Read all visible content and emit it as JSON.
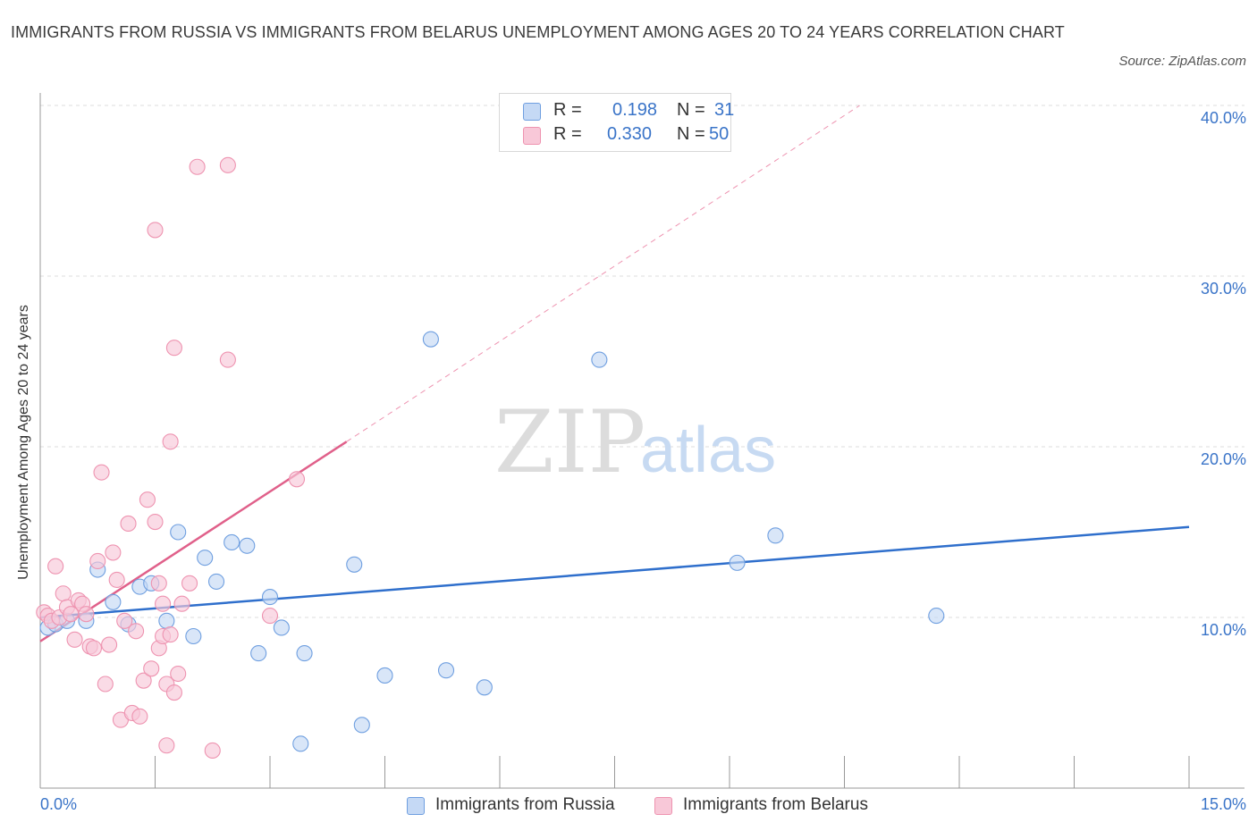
{
  "chart_data": {
    "type": "scatter",
    "title": "IMMIGRANTS FROM RUSSIA VS IMMIGRANTS FROM BELARUS UNEMPLOYMENT AMONG AGES 20 TO 24 YEARS CORRELATION CHART",
    "source": "Source: ZipAtlas.com",
    "ylabel": "Unemployment Among Ages 20 to 24 years",
    "xlabel": "",
    "xlim": [
      0,
      15
    ],
    "ylim": [
      0,
      40
    ],
    "x_tick_labels": [
      "0.0%",
      "15.0%"
    ],
    "y_ticks": [
      10,
      20,
      30,
      40
    ],
    "y_tick_labels": [
      "10.0%",
      "20.0%",
      "30.0%",
      "40.0%"
    ],
    "grid": true,
    "watermark": "ZIPatlas",
    "legend_stats": {
      "r_label": "R =",
      "n_label": "N =",
      "rows": [
        {
          "r": "0.198",
          "n": "31"
        },
        {
          "r": "0.330",
          "n": "50"
        }
      ]
    },
    "series": [
      {
        "name": "Immigrants from Russia",
        "color": "#6f9fe0",
        "fill": "#c5d9f5",
        "line_color": "#2f6fcc",
        "trend": {
          "x": [
            0,
            15
          ],
          "y": [
            10.0,
            15.3
          ]
        },
        "points": [
          [
            0.1,
            9.4
          ],
          [
            0.2,
            9.6
          ],
          [
            0.35,
            9.8
          ],
          [
            0.6,
            9.8
          ],
          [
            0.75,
            12.8
          ],
          [
            0.95,
            10.9
          ],
          [
            1.15,
            9.6
          ],
          [
            1.3,
            11.8
          ],
          [
            1.45,
            12.0
          ],
          [
            1.65,
            9.8
          ],
          [
            1.8,
            15.0
          ],
          [
            2.0,
            8.9
          ],
          [
            2.15,
            13.5
          ],
          [
            2.3,
            12.1
          ],
          [
            2.5,
            14.4
          ],
          [
            2.7,
            14.2
          ],
          [
            2.85,
            7.9
          ],
          [
            3.0,
            11.2
          ],
          [
            3.15,
            9.4
          ],
          [
            3.4,
            2.6
          ],
          [
            3.45,
            7.9
          ],
          [
            4.1,
            13.1
          ],
          [
            4.2,
            3.7
          ],
          [
            4.5,
            6.6
          ],
          [
            5.1,
            26.3
          ],
          [
            5.3,
            6.9
          ],
          [
            5.8,
            5.9
          ],
          [
            7.3,
            25.1
          ],
          [
            9.1,
            13.2
          ],
          [
            9.6,
            14.8
          ],
          [
            11.7,
            10.1
          ]
        ]
      },
      {
        "name": "Immigrants from Belarus",
        "color": "#ee93b0",
        "fill": "#f8c8d8",
        "line_color": "#e0608a",
        "trend": {
          "x": [
            0,
            4.0
          ],
          "y": [
            8.6,
            20.3
          ]
        },
        "trend_extension": {
          "x": [
            4.0,
            10.7
          ],
          "y": [
            20.3,
            40.0
          ]
        },
        "points": [
          [
            0.05,
            10.3
          ],
          [
            0.1,
            10.1
          ],
          [
            0.15,
            9.8
          ],
          [
            0.2,
            13.0
          ],
          [
            0.25,
            10.0
          ],
          [
            0.3,
            11.4
          ],
          [
            0.35,
            10.6
          ],
          [
            0.4,
            10.2
          ],
          [
            0.45,
            8.7
          ],
          [
            0.5,
            11.0
          ],
          [
            0.55,
            10.8
          ],
          [
            0.6,
            10.2
          ],
          [
            0.65,
            8.3
          ],
          [
            0.7,
            8.2
          ],
          [
            0.75,
            13.3
          ],
          [
            0.8,
            18.5
          ],
          [
            0.85,
            6.1
          ],
          [
            0.9,
            8.4
          ],
          [
            0.95,
            13.8
          ],
          [
            1.0,
            12.2
          ],
          [
            1.05,
            4.0
          ],
          [
            1.1,
            9.8
          ],
          [
            1.15,
            15.5
          ],
          [
            1.2,
            4.4
          ],
          [
            1.25,
            9.2
          ],
          [
            1.3,
            4.2
          ],
          [
            1.35,
            6.3
          ],
          [
            1.4,
            16.9
          ],
          [
            1.45,
            7.0
          ],
          [
            1.5,
            15.6
          ],
          [
            1.55,
            8.2
          ],
          [
            1.6,
            8.9
          ],
          [
            1.65,
            6.1
          ],
          [
            1.7,
            9.0
          ],
          [
            1.75,
            5.6
          ],
          [
            1.8,
            6.7
          ],
          [
            1.5,
            32.7
          ],
          [
            1.55,
            12.0
          ],
          [
            1.6,
            10.8
          ],
          [
            1.65,
            2.5
          ],
          [
            1.7,
            20.3
          ],
          [
            1.75,
            25.8
          ],
          [
            1.85,
            10.8
          ],
          [
            1.95,
            12.0
          ],
          [
            2.05,
            36.4
          ],
          [
            2.25,
            2.2
          ],
          [
            2.45,
            25.1
          ],
          [
            2.45,
            36.5
          ],
          [
            3.0,
            10.1
          ],
          [
            3.35,
            18.1
          ]
        ]
      }
    ]
  }
}
